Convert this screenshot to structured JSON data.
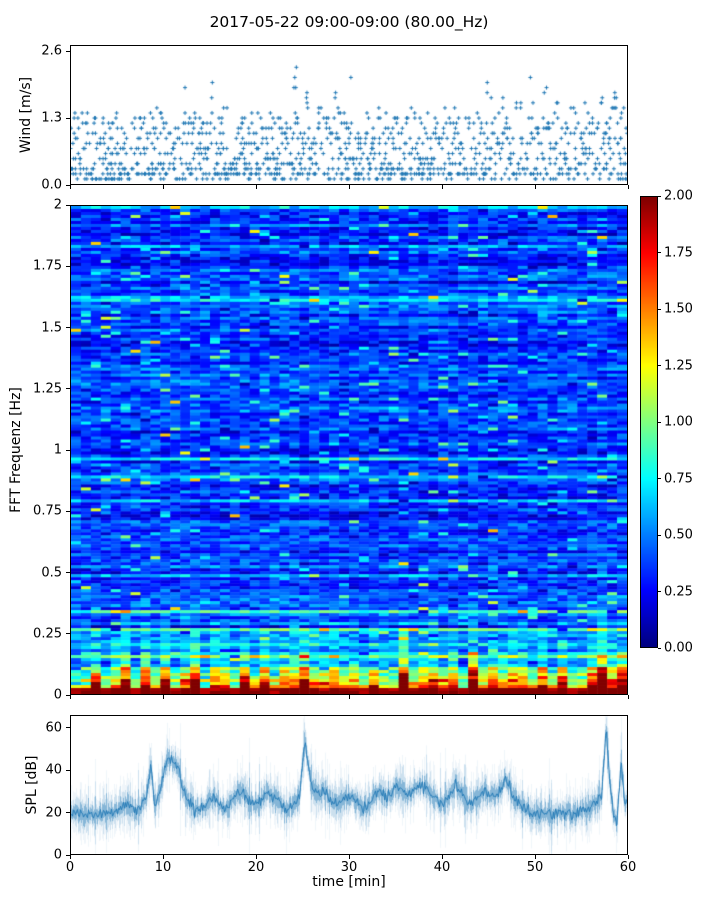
{
  "figure": {
    "title": "2017-05-22 09:00-09:00 (80.00_Hz)",
    "background": "#ffffff"
  },
  "chart_data": [
    {
      "id": "wind",
      "type": "scatter",
      "ylabel": "Wind [m/s]",
      "xlim": [
        0,
        60
      ],
      "ylim": [
        0,
        2.72
      ],
      "yticks": [
        0.0,
        1.3,
        2.6
      ],
      "ytick_labels": [
        "0.0",
        "1.3",
        "2.6"
      ],
      "xticks": [
        0,
        10,
        20,
        30,
        40,
        50,
        60
      ],
      "marker": "+",
      "marker_color": "#1f77b4",
      "seed": 42,
      "sample_step_min": 0.25,
      "y_quantum_ms": 0.1,
      "points_per_step": [
        3,
        7
      ],
      "base_max_ms": 1.3,
      "gusts": [
        [
          1.2,
          1.5
        ],
        [
          3.0,
          1.9
        ],
        [
          4.6,
          1.5
        ],
        [
          6.2,
          1.6
        ],
        [
          8.1,
          1.7
        ],
        [
          9.3,
          1.6
        ],
        [
          12.3,
          2.45
        ],
        [
          13.4,
          2.05
        ],
        [
          15.2,
          2.2
        ],
        [
          16.6,
          1.85
        ],
        [
          18.9,
          2.0
        ],
        [
          20.3,
          1.7
        ],
        [
          21.6,
          1.75
        ],
        [
          24.2,
          2.3
        ],
        [
          25.4,
          2.15
        ],
        [
          26.8,
          1.9
        ],
        [
          28.5,
          2.0
        ],
        [
          30.4,
          2.4
        ],
        [
          31.6,
          2.0
        ],
        [
          33.2,
          1.75
        ],
        [
          35.0,
          1.6
        ],
        [
          36.9,
          1.9
        ],
        [
          38.4,
          2.1
        ],
        [
          40.1,
          1.8
        ],
        [
          41.6,
          1.65
        ],
        [
          43.4,
          1.7
        ],
        [
          45.1,
          2.3
        ],
        [
          46.6,
          2.05
        ],
        [
          48.2,
          2.35
        ],
        [
          49.6,
          2.2
        ],
        [
          51.1,
          2.1
        ],
        [
          52.6,
          1.9
        ],
        [
          54.1,
          1.75
        ],
        [
          55.6,
          2.0
        ],
        [
          57.1,
          1.85
        ],
        [
          58.6,
          1.95
        ],
        [
          59.6,
          1.7
        ]
      ]
    },
    {
      "id": "spectrogram",
      "type": "heatmap",
      "ylabel": "FFT Frequenz [Hz]",
      "xlim": [
        0,
        60
      ],
      "ylim": [
        0,
        2
      ],
      "yticks": [
        0,
        0.25,
        0.5,
        0.75,
        1,
        1.25,
        1.5,
        1.75,
        2
      ],
      "ytick_labels": [
        "0",
        "0.25",
        "0.5",
        "0.75",
        "1",
        "1.25",
        "1.5",
        "1.75",
        "2"
      ],
      "xticks": [
        0,
        10,
        20,
        30,
        40,
        50,
        60
      ],
      "colormap": "jet",
      "clim": [
        0,
        2
      ],
      "grid": {
        "cols": 56,
        "rows": 163
      },
      "seed": 7,
      "background_level": 0.36,
      "row_streak_strength": 0.26,
      "lowfreq_boost": {
        "amplitude": 0.85,
        "hot_gain": 1.5,
        "decay_hz": 0.032,
        "hot_decay_gain": 0.045
      },
      "midfreq_boost": {
        "amplitude": 0.45,
        "hot_gain": 1.25,
        "decay_hz": 0.13
      },
      "hot_columns": [
        [
          2.4,
          0.55
        ],
        [
          5.5,
          0.85
        ],
        [
          8.0,
          0.6
        ],
        [
          10.2,
          0.5
        ],
        [
          13.0,
          0.9
        ],
        [
          16.0,
          0.55
        ],
        [
          18.6,
          0.6
        ],
        [
          21.0,
          0.5
        ],
        [
          23.6,
          0.65
        ],
        [
          25.6,
          0.9
        ],
        [
          28.0,
          0.55
        ],
        [
          30.2,
          0.45
        ],
        [
          33.0,
          0.5
        ],
        [
          36.0,
          0.85
        ],
        [
          38.6,
          0.7
        ],
        [
          41.0,
          0.5
        ],
        [
          43.6,
          0.8
        ],
        [
          46.0,
          0.6
        ],
        [
          48.2,
          0.65
        ],
        [
          50.6,
          0.55
        ],
        [
          53.0,
          0.5
        ],
        [
          56.0,
          0.6
        ],
        [
          57.6,
          0.95
        ],
        [
          59.3,
          0.7
        ]
      ],
      "colorbar": {
        "ticks": [
          0,
          0.25,
          0.5,
          0.75,
          1,
          1.25,
          1.5,
          1.75,
          2
        ],
        "tick_labels": [
          "0.00",
          "0.25",
          "0.50",
          "0.75",
          "1.00",
          "1.25",
          "1.50",
          "1.75",
          "2.00"
        ]
      }
    },
    {
      "id": "spl",
      "type": "line",
      "ylabel": "SPL [dB]",
      "xlabel": "time [min]",
      "xlim": [
        0,
        60
      ],
      "ylim": [
        0,
        66
      ],
      "yticks": [
        0,
        20,
        40,
        60
      ],
      "ytick_labels": [
        "0",
        "20",
        "40",
        "60"
      ],
      "xticks": [
        0,
        10,
        20,
        30,
        40,
        50,
        60
      ],
      "xtick_labels": [
        "0",
        "10",
        "20",
        "30",
        "40",
        "50",
        "60"
      ],
      "line_color": "#1f77b4",
      "seed": 99,
      "noise_db": 3.2,
      "envelope": [
        [
          0,
          21
        ],
        [
          1,
          19
        ],
        [
          2,
          18
        ],
        [
          3,
          19
        ],
        [
          4,
          20
        ],
        [
          5,
          21
        ],
        [
          6,
          24
        ],
        [
          6.5,
          22
        ],
        [
          7,
          20
        ],
        [
          7.5,
          22
        ],
        [
          8,
          26
        ],
        [
          8.6,
          42
        ],
        [
          8.9,
          24
        ],
        [
          9.5,
          28
        ],
        [
          10.2,
          44
        ],
        [
          10.8,
          46
        ],
        [
          11.4,
          43
        ],
        [
          12,
          32
        ],
        [
          12.6,
          25
        ],
        [
          13.5,
          21
        ],
        [
          14.5,
          23
        ],
        [
          15.2,
          27
        ],
        [
          16,
          24
        ],
        [
          16.8,
          22
        ],
        [
          17.5,
          26
        ],
        [
          18.3,
          30
        ],
        [
          19,
          26
        ],
        [
          19.8,
          23
        ],
        [
          20.5,
          26
        ],
        [
          21.2,
          30
        ],
        [
          21.8,
          27
        ],
        [
          22.5,
          24
        ],
        [
          23.2,
          20
        ],
        [
          24,
          23
        ],
        [
          24.6,
          28
        ],
        [
          25.2,
          55
        ],
        [
          25.6,
          40
        ],
        [
          26,
          33
        ],
        [
          26.5,
          28
        ],
        [
          27.2,
          30
        ],
        [
          28,
          26
        ],
        [
          28.8,
          24
        ],
        [
          29.5,
          26
        ],
        [
          30.2,
          28
        ],
        [
          31,
          24
        ],
        [
          31.8,
          22
        ],
        [
          32.5,
          26
        ],
        [
          33.2,
          30
        ],
        [
          34,
          27
        ],
        [
          34.8,
          30
        ],
        [
          35.5,
          33
        ],
        [
          36.2,
          28
        ],
        [
          37,
          31
        ],
        [
          37.8,
          34
        ],
        [
          38.5,
          30
        ],
        [
          39.2,
          26
        ],
        [
          40,
          24
        ],
        [
          40.8,
          28
        ],
        [
          41.5,
          33
        ],
        [
          42.2,
          28
        ],
        [
          43,
          24
        ],
        [
          43.8,
          26
        ],
        [
          44.5,
          30
        ],
        [
          45.2,
          27
        ],
        [
          46,
          29
        ],
        [
          46.8,
          36
        ],
        [
          47.4,
          31
        ],
        [
          48,
          26
        ],
        [
          48.8,
          22
        ],
        [
          49.5,
          20
        ],
        [
          50.2,
          19
        ],
        [
          51,
          20
        ],
        [
          52,
          19
        ],
        [
          53,
          20
        ],
        [
          54,
          19
        ],
        [
          55,
          21
        ],
        [
          55.8,
          22
        ],
        [
          56.5,
          24
        ],
        [
          57.2,
          28
        ],
        [
          57.7,
          60
        ],
        [
          58.1,
          35
        ],
        [
          58.5,
          18
        ],
        [
          58.9,
          15
        ],
        [
          59.3,
          45
        ],
        [
          59.7,
          24
        ],
        [
          60,
          27
        ]
      ]
    }
  ]
}
